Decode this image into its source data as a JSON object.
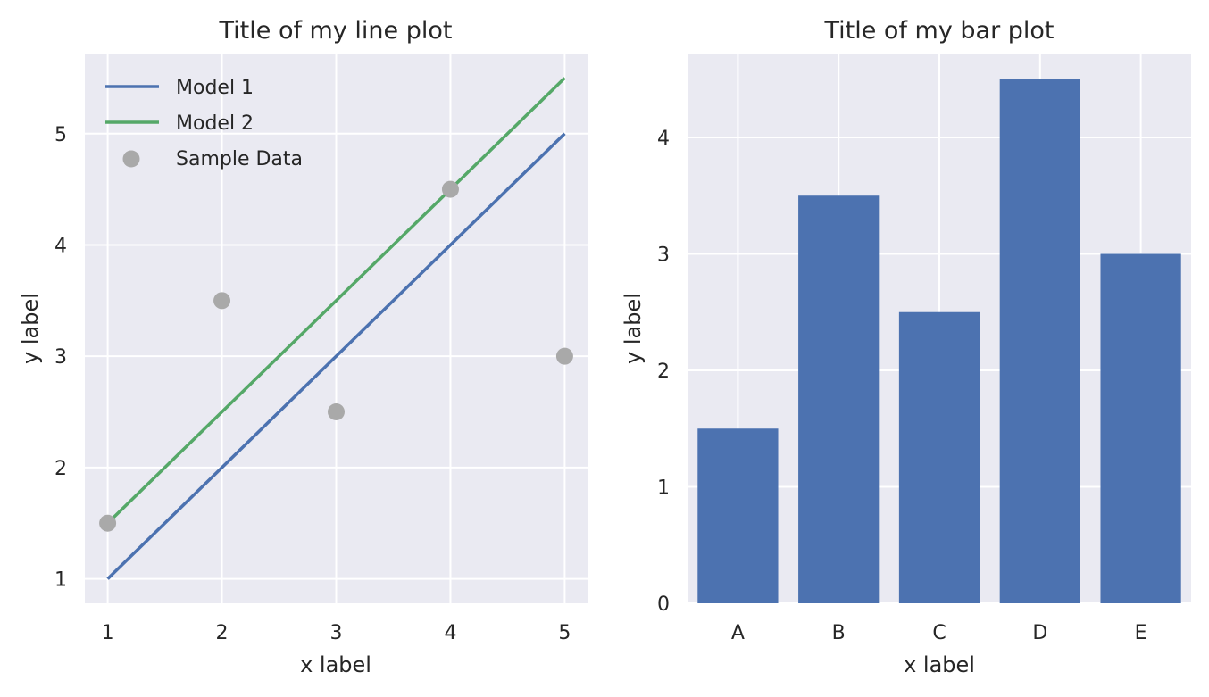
{
  "colors": {
    "axes_bg": "#EAEAF2",
    "grid": "#FFFFFF",
    "model1": "#4C72B0",
    "model2": "#55A868",
    "sample": "#A9A9A9",
    "bar": "#4C72B0"
  },
  "chart_data": [
    {
      "type": "line",
      "title": "Title of my line plot",
      "xlabel": "x label",
      "ylabel": "y label",
      "xlim": [
        0.8,
        5.2
      ],
      "ylim": [
        0.78,
        5.72
      ],
      "xticks": [
        1,
        2,
        3,
        4,
        5
      ],
      "yticks": [
        1,
        2,
        3,
        4,
        5
      ],
      "grid": true,
      "legend_position": "top-left",
      "series": [
        {
          "name": "Model 1",
          "kind": "line",
          "x": [
            1,
            2,
            3,
            4,
            5
          ],
          "y": [
            1,
            2,
            3,
            4,
            5
          ]
        },
        {
          "name": "Model 2",
          "kind": "line",
          "x": [
            1,
            2,
            3,
            4,
            5
          ],
          "y": [
            1.5,
            2.5,
            3.5,
            4.5,
            5.5
          ]
        },
        {
          "name": "Sample Data",
          "kind": "scatter",
          "x": [
            1,
            2,
            3,
            4,
            5
          ],
          "y": [
            1.5,
            3.5,
            2.5,
            4.5,
            3.0
          ]
        }
      ]
    },
    {
      "type": "bar",
      "title": "Title of my bar plot",
      "xlabel": "x label",
      "ylabel": "y label",
      "ylim": [
        0,
        4.72
      ],
      "yticks": [
        0,
        1,
        2,
        3,
        4
      ],
      "grid": true,
      "categories": [
        "A",
        "B",
        "C",
        "D",
        "E"
      ],
      "values": [
        1.5,
        3.5,
        2.5,
        4.5,
        3.0
      ]
    }
  ]
}
